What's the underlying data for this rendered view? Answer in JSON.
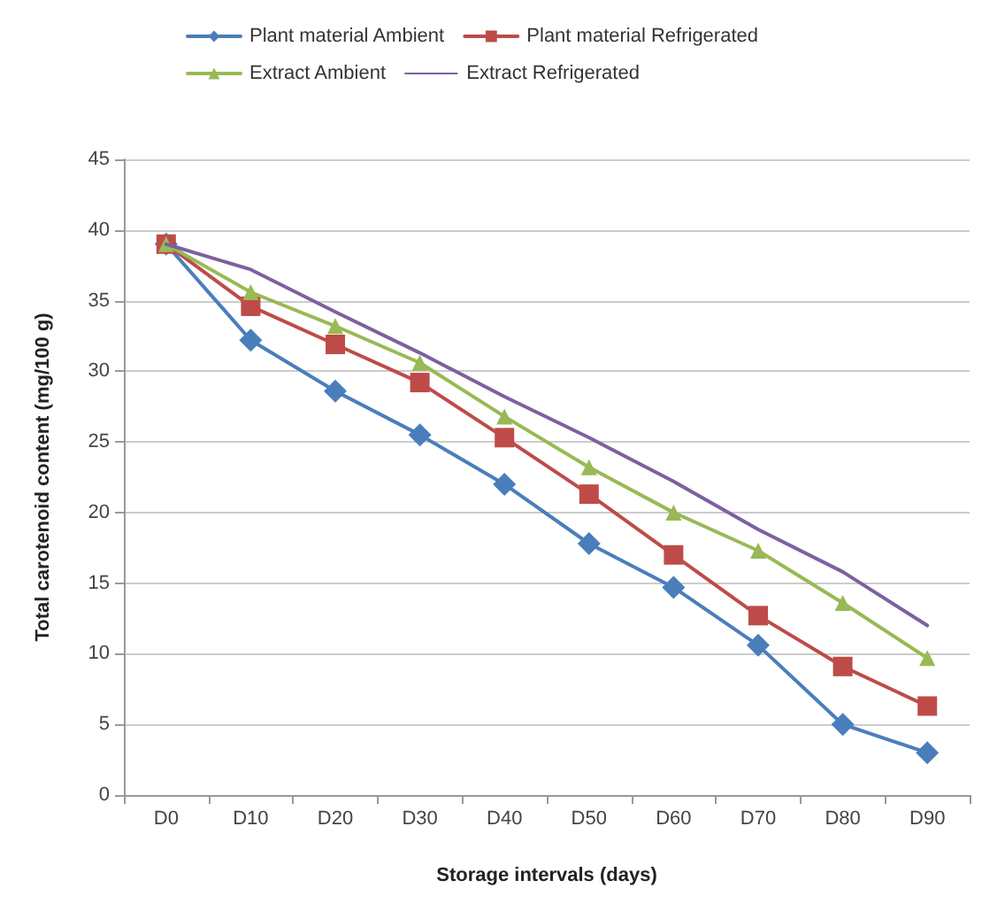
{
  "chart_data": {
    "type": "line",
    "xlabel": "Storage intervals (days)",
    "ylabel": "Total carotenoid content (mg/100 g)",
    "categories": [
      "D0",
      "D10",
      "D20",
      "D30",
      "D40",
      "D50",
      "D60",
      "D70",
      "D80",
      "D90"
    ],
    "series": [
      {
        "name": "Plant material Ambient",
        "color": "#4a7ebb",
        "marker": "diamond",
        "values": [
          39,
          32.2,
          28.6,
          25.5,
          22,
          17.8,
          14.7,
          10.6,
          5,
          3
        ]
      },
      {
        "name": "Plant material Refrigerated",
        "color": "#be4b48",
        "marker": "square",
        "values": [
          39,
          34.6,
          31.9,
          29.2,
          25.3,
          21.3,
          17,
          12.7,
          9.1,
          6.3
        ]
      },
      {
        "name": "Extract Ambient",
        "color": "#98b954",
        "marker": "triangle",
        "values": [
          39,
          35.6,
          33.2,
          30.6,
          26.8,
          23.2,
          20,
          17.3,
          13.6,
          9.7
        ]
      },
      {
        "name": "Extract Refrigerated",
        "color": "#7d60a0",
        "marker": "none",
        "values": [
          39,
          37.2,
          34.2,
          31.3,
          28.2,
          25.3,
          22.2,
          18.8,
          15.8,
          12
        ]
      }
    ],
    "ylim": [
      0,
      45
    ],
    "yticks": [
      0,
      5,
      10,
      15,
      20,
      25,
      30,
      35,
      40,
      45
    ],
    "grid": "y",
    "legend": "top"
  }
}
